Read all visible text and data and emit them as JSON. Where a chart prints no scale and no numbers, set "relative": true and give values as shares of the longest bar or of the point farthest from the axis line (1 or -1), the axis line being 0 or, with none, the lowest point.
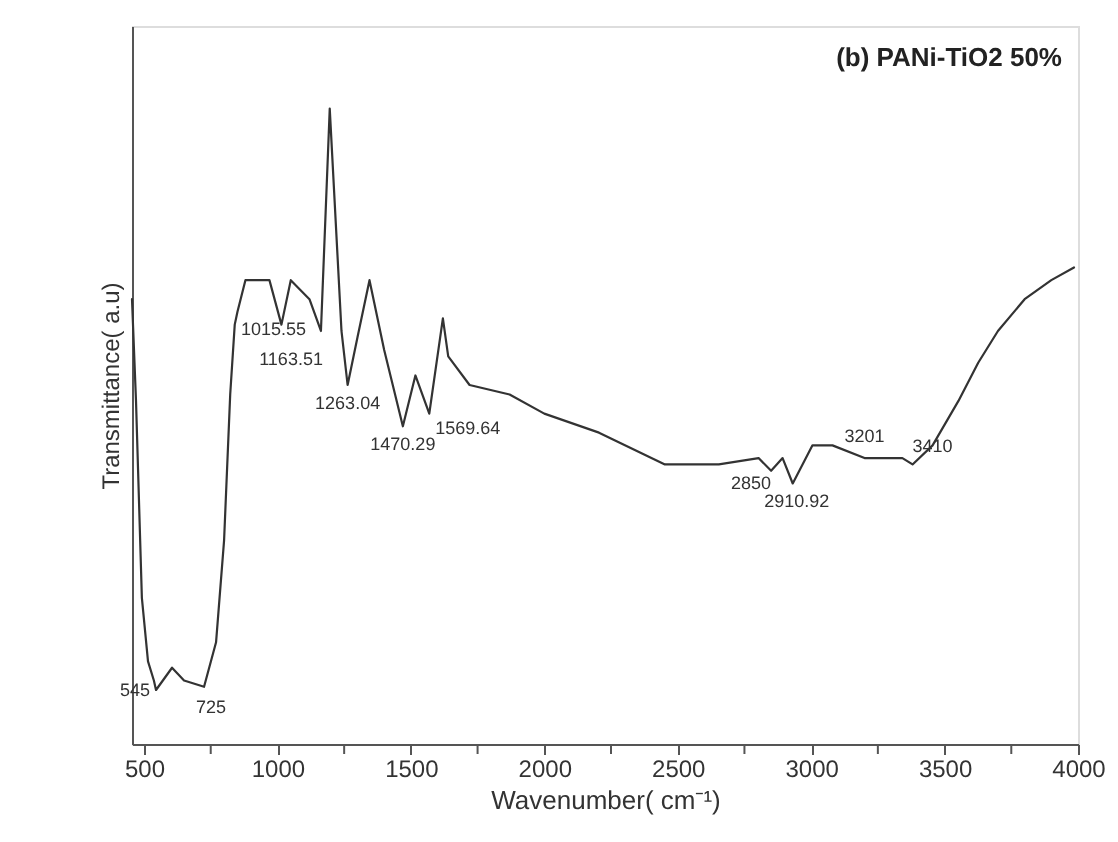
{
  "chart_data": {
    "type": "line",
    "relative": true,
    "title": "(b) PANi-TiO2 50%",
    "xlabel": "Wavenumber( cm⁻¹)",
    "ylabel": "Transmittance( a.u)",
    "xlim": [
      455,
      4000
    ],
    "xticks": [
      500,
      {
        "value": 750,
        "label": null
      },
      1000,
      {
        "value": 1250,
        "label": null
      },
      1500,
      {
        "value": 1750,
        "label": null
      },
      2000,
      {
        "value": 2250,
        "label": null
      },
      2500,
      {
        "value": 2750,
        "label": null
      },
      3000,
      {
        "value": 3250,
        "label": null
      },
      3500,
      {
        "value": 3750,
        "label": null
      },
      4000
    ],
    "grid": false,
    "marker": "none",
    "line_style": "solid",
    "x": [
      455,
      470,
      492,
      515,
      537,
      545,
      605,
      650,
      725,
      770,
      800,
      823,
      840,
      850,
      880,
      970,
      1015,
      1050,
      1120,
      1163,
      1196,
      1240,
      1263,
      1300,
      1345,
      1400,
      1470,
      1517,
      1569,
      1620,
      1640,
      1720,
      1870,
      2000,
      2205,
      2452,
      2654,
      2803,
      2850,
      2893,
      2931,
      3005,
      3080,
      3200,
      3342,
      3380,
      3455,
      3552,
      3626,
      3700,
      3800,
      3900,
      3985
    ],
    "series": [
      {
        "color": "#333333",
        "values": [
          0.7,
          0.54,
          0.23,
          0.13,
          0.1,
          0.085,
          0.12,
          0.1,
          0.09,
          0.16,
          0.32,
          0.55,
          0.66,
          0.68,
          0.73,
          0.73,
          0.66,
          0.73,
          0.7,
          0.65,
          1.0,
          0.65,
          0.565,
          0.64,
          0.73,
          0.62,
          0.5,
          0.58,
          0.52,
          0.67,
          0.61,
          0.565,
          0.55,
          0.52,
          0.49,
          0.44,
          0.44,
          0.45,
          0.43,
          0.45,
          0.41,
          0.47,
          0.47,
          0.45,
          0.45,
          0.44,
          0.47,
          0.54,
          0.6,
          0.65,
          0.7,
          0.73,
          0.75
        ]
      }
    ],
    "annotations": [
      {
        "text": "545",
        "x": 545,
        "y": 0.085
      },
      {
        "text": "725",
        "x": 725,
        "y": 0.09
      },
      {
        "text": "1015.55",
        "x": 1015,
        "y": 0.66
      },
      {
        "text": "1163.51",
        "x": 1163,
        "y": 0.65
      },
      {
        "text": "1263.04",
        "x": 1263,
        "y": 0.565
      },
      {
        "text": "1470.29",
        "x": 1470,
        "y": 0.5
      },
      {
        "text": "1569.64",
        "x": 1569,
        "y": 0.52
      },
      {
        "text": "2850",
        "x": 2850,
        "y": 0.43
      },
      {
        "text": "2910.92",
        "x": 2931,
        "y": 0.41
      },
      {
        "text": "3201",
        "x": 3200,
        "y": 0.45
      },
      {
        "text": "3410",
        "x": 3380,
        "y": 0.44
      }
    ]
  }
}
